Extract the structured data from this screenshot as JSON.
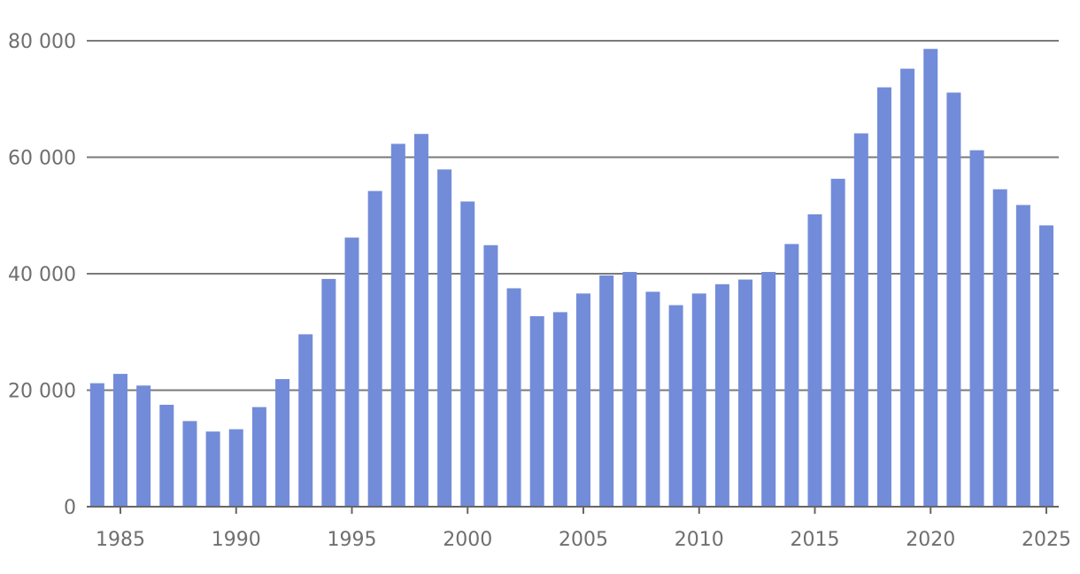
{
  "chart_data": {
    "type": "bar",
    "title": "",
    "xlabel": "",
    "ylabel": "",
    "ylim": [
      0,
      80000
    ],
    "y_ticks": [
      0,
      20000,
      40000,
      60000,
      80000
    ],
    "y_tick_labels": [
      "0",
      "20 000",
      "40 000",
      "60 000",
      "80 000"
    ],
    "x_ticks": [
      1985,
      1990,
      1995,
      2000,
      2005,
      2010,
      2015,
      2020,
      2025
    ],
    "x_tick_labels": [
      "1985",
      "1990",
      "1995",
      "2000",
      "2005",
      "2010",
      "2015",
      "2020",
      "2025"
    ],
    "grid": "horizontal",
    "bar_color": "#728cd9",
    "categories": [
      1984,
      1985,
      1986,
      1987,
      1988,
      1989,
      1990,
      1991,
      1992,
      1993,
      1994,
      1995,
      1996,
      1997,
      1998,
      1999,
      2000,
      2001,
      2002,
      2003,
      2004,
      2005,
      2006,
      2007,
      2008,
      2009,
      2010,
      2011,
      2012,
      2013,
      2014,
      2015,
      2016,
      2017,
      2018,
      2019,
      2020,
      2021,
      2022,
      2023,
      2024,
      2025
    ],
    "values": [
      21200,
      22800,
      20800,
      17500,
      14700,
      12900,
      13300,
      17100,
      21900,
      29600,
      39100,
      46200,
      54200,
      62300,
      64000,
      57900,
      52400,
      44900,
      37500,
      32700,
      33400,
      36600,
      39700,
      40300,
      36900,
      34600,
      36600,
      38200,
      39000,
      40300,
      45100,
      50200,
      56300,
      64100,
      72000,
      75200,
      78600,
      71100,
      61200,
      54500,
      51800,
      48300
    ]
  }
}
